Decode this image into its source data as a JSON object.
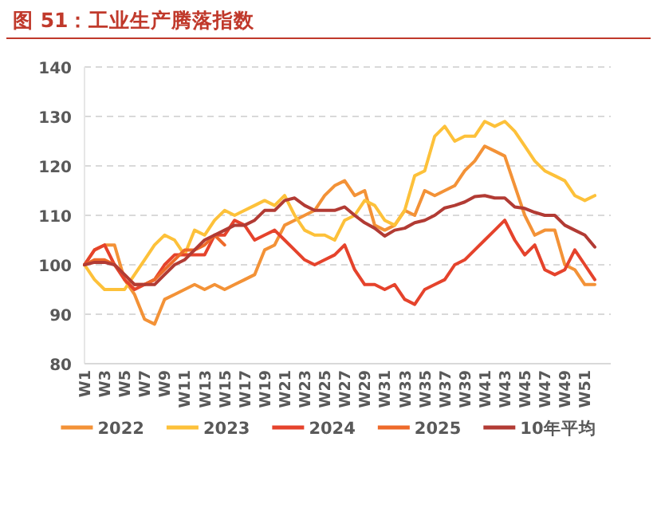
{
  "chart_data": {
    "type": "line",
    "title": "图 51：工业生产腾落指数",
    "categories": [
      "W1",
      null,
      "W3",
      null,
      "W5",
      null,
      "W7",
      null,
      "W9",
      null,
      "W11",
      null,
      "W13",
      null,
      "W15",
      null,
      "W17",
      null,
      "W19",
      null,
      "W21",
      null,
      "W23",
      null,
      "W25",
      null,
      "W27",
      null,
      "W29",
      null,
      "W31",
      null,
      "W33",
      null,
      "W35",
      null,
      "W37",
      null,
      "W39",
      null,
      "W41",
      null,
      "W43",
      null,
      "W45",
      null,
      "W47",
      null,
      "W49",
      null,
      "W51",
      null
    ],
    "series": [
      {
        "name": "2022",
        "color": "#f39237",
        "values": [
          100,
          103,
          104,
          104,
          97,
          94,
          89,
          88,
          93,
          94,
          95,
          96,
          95,
          96,
          95,
          96,
          97,
          98,
          103,
          104,
          108,
          109,
          110,
          111,
          114,
          116,
          117,
          114,
          115,
          108,
          107,
          108,
          111,
          110,
          115,
          114,
          115,
          116,
          119,
          121,
          124,
          123,
          122,
          116,
          110,
          106,
          107,
          107,
          100,
          99,
          96,
          96
        ]
      },
      {
        "name": "2023",
        "color": "#fdc13a",
        "values": [
          100,
          97,
          95,
          95,
          95,
          98,
          101,
          104,
          106,
          105,
          102,
          107,
          106,
          109,
          111,
          110,
          111,
          112,
          113,
          112,
          114,
          110,
          107,
          106,
          106,
          105,
          109,
          110,
          113,
          112,
          109,
          108,
          111,
          118,
          119,
          126,
          128,
          125,
          126,
          126,
          129,
          128,
          129,
          127,
          124,
          121,
          119,
          118,
          117,
          114,
          113,
          114
        ]
      },
      {
        "name": "2024",
        "color": "#e5432c",
        "values": [
          100,
          103,
          104,
          100,
          97,
          95,
          96,
          97,
          100,
          102,
          102,
          102,
          102,
          106,
          106,
          109,
          108,
          105,
          106,
          107,
          105,
          103,
          101,
          100,
          101,
          102,
          104,
          99,
          96,
          96,
          95,
          96,
          93,
          92,
          95,
          96,
          97,
          100,
          101,
          103,
          105,
          107,
          109,
          105,
          102,
          104,
          99,
          98,
          99,
          103,
          100,
          97
        ]
      },
      {
        "name": "2025",
        "color": "#ee6a2a",
        "values": [
          100,
          101,
          101,
          100,
          98,
          96,
          96,
          97,
          99,
          101,
          103,
          103,
          104,
          106,
          104,
          null,
          null,
          null,
          null,
          null,
          null,
          null,
          null,
          null,
          null,
          null,
          null,
          null,
          null,
          null,
          null,
          null,
          null,
          null,
          null,
          null,
          null,
          null,
          null,
          null,
          null,
          null,
          null,
          null,
          null,
          null,
          null,
          null,
          null,
          null,
          null,
          null
        ]
      },
      {
        "name": "10年平均",
        "color": "#b23b34",
        "values": [
          100,
          100.5,
          100.5,
          100,
          98,
          96,
          96,
          96,
          98,
          100,
          101,
          103,
          105,
          106,
          107,
          108,
          108,
          109,
          111,
          111,
          113,
          113.5,
          112,
          111,
          111,
          111,
          111.7,
          110,
          108.5,
          107.4,
          105.8,
          107,
          107.4,
          108.5,
          109,
          110,
          111.5,
          112,
          112.7,
          113.8,
          114,
          113.5,
          113.5,
          111.7,
          111.4,
          110.6,
          110,
          110,
          108,
          107,
          106,
          103.6
        ]
      }
    ],
    "ylim": [
      80,
      140
    ],
    "yticks": [
      80,
      90,
      100,
      110,
      120,
      130,
      140
    ],
    "grid": "y",
    "legend": "bottom",
    "marker": "none",
    "line_style": "solid"
  }
}
